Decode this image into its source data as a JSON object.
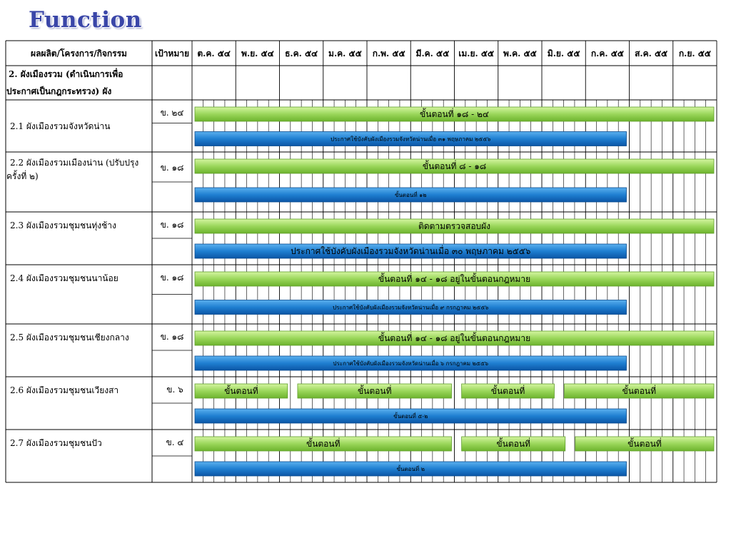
{
  "title": "Function",
  "header": {
    "activity": "ผลผลิต/โครงการ/กิจกรรม",
    "target": "เป้าหมาย",
    "months": [
      "ต.ค. ๕๔",
      "พ.ย. ๕๔",
      "ธ.ค. ๕๔",
      "ม.ค. ๕๕",
      "ก.พ. ๕๕",
      "มี.ค. ๕๕",
      "เม.ย. ๕๕",
      "พ.ค. ๕๕",
      "มิ.ย. ๕๕",
      "ก.ค. ๕๕",
      "ส.ค. ๕๕",
      "ก.ย. ๕๕"
    ]
  },
  "section": {
    "line1": "2. ผังเมืองรวม (ดำเนินการเพื่อ",
    "line2": "ประกาศเป็นกฎกระทรวง) ผัง"
  },
  "rows": [
    {
      "name_lines": [
        "2.1 ผังเมืองรวมจังหวัดน่าน"
      ],
      "target": "ข. ๒๔",
      "bars": [
        {
          "lane": 0,
          "color": "green",
          "start": 0,
          "end": 12,
          "label": "ขั้นตอนที่  ๑๘ - ๒๔"
        },
        {
          "lane": 1,
          "color": "blue",
          "start": 0,
          "end": 10,
          "label": "ประกาศใช้บังคับผังเมืองรวมจังหวัดน่านเมื่อ ๓๑ พฤษภาคม ๒๕๕๖",
          "small": true
        }
      ]
    },
    {
      "name_lines": [
        "2.2 ผังเมืองรวมเมืองน่าน (ปรับปรุง",
        "ครั้งที่ ๒)"
      ],
      "target": "ข. ๑๘",
      "bars": [
        {
          "lane": 0,
          "color": "green",
          "start": 0,
          "end": 12,
          "label": "ขั้นตอนที่  ๘ - ๑๘"
        },
        {
          "lane": 1,
          "color": "blue",
          "start": 0,
          "end": 10,
          "label": "ขั้นตอนที่ ๑๒",
          "small": true
        }
      ]
    },
    {
      "name_lines": [
        "2.3  ผังเมืองรวมชุมชนทุ่งช้าง"
      ],
      "target": "ข. ๑๘",
      "bars": [
        {
          "lane": 0,
          "color": "green",
          "start": 0,
          "end": 12,
          "label": "ติดตามตรวจสอบผัง"
        },
        {
          "lane": 1,
          "color": "blue",
          "start": 0,
          "end": 10,
          "label": "ประกาศใช้บังคับผังเมืองรวมจังหวัดน่านเมื่อ ๓๐ พฤษภาคม ๒๕๕๖"
        }
      ]
    },
    {
      "name_lines": [
        "2.4 ผังเมืองรวมชุมชนนาน้อย"
      ],
      "target": "ข. ๑๘",
      "bars": [
        {
          "lane": 0,
          "color": "green",
          "start": 0,
          "end": 12,
          "label": "ขั้นตอนที่ ๑๔ - ๑๘ อยู่ในขั้นตอนกฎหมาย"
        },
        {
          "lane": 1,
          "color": "blue",
          "start": 0,
          "end": 10,
          "label": "ประกาศใช้บังคับผังเมืองรวมจังหวัดน่านเมื่อ ๙ กรกฎาคม ๒๕๕๖",
          "small": true
        }
      ]
    },
    {
      "name_lines": [
        "2.5 ผังเมืองรวมชุมชนเชียงกลาง"
      ],
      "target": "ข. ๑๘",
      "bars": [
        {
          "lane": 0,
          "color": "green",
          "start": 0,
          "end": 12,
          "label": "ขั้นตอนที่ ๑๔ - ๑๘ อยู่ในขั้นตอนกฎหมาย"
        },
        {
          "lane": 1,
          "color": "blue",
          "start": 0,
          "end": 10,
          "label": "ประกาศใช้บังคับผังเมืองรวมจังหวัดน่านเมื่อ ๖ กรกฎาคม ๒๕๕๖",
          "small": true
        }
      ]
    },
    {
      "name_lines": [
        "2.6 ผังเมืองรวมชุมชนเวียงสา"
      ],
      "target": "ข. ๖",
      "bars": [
        {
          "lane": 0,
          "color": "green",
          "start": 0,
          "end": 2.25,
          "label": "ขั้นตอนที่"
        },
        {
          "lane": 0,
          "color": "green",
          "start": 2.35,
          "end": 6,
          "label": "ขั้นตอนที่"
        },
        {
          "lane": 0,
          "color": "green",
          "start": 6.1,
          "end": 8.35,
          "label": "ขั้นตอนที่"
        },
        {
          "lane": 0,
          "color": "green",
          "start": 8.45,
          "end": 12,
          "label": "ขั้นตอนที่"
        },
        {
          "lane": 1,
          "color": "blue",
          "start": 0,
          "end": 10,
          "label": "ขั้นตอนที่ ๕-๒",
          "small": true
        }
      ]
    },
    {
      "name_lines": [
        "2.7 ผังเมืองรวมชุมชนปัว"
      ],
      "target": "ข. ๔",
      "bars": [
        {
          "lane": 0,
          "color": "green",
          "start": 0,
          "end": 6,
          "label": "ขั้นตอนที่"
        },
        {
          "lane": 0,
          "color": "green",
          "start": 6.1,
          "end": 8.6,
          "label": "ขั้นตอนที่"
        },
        {
          "lane": 0,
          "color": "green",
          "start": 8.7,
          "end": 12,
          "label": "ขั้นตอนที่"
        },
        {
          "lane": 1,
          "color": "blue",
          "start": 0,
          "end": 10,
          "label": "ขั้นตอนที่ ๒",
          "small": true
        }
      ]
    }
  ],
  "colors": {
    "green_top": "#c6ef8c",
    "green_bottom": "#7cc23a",
    "blue_top": "#4da3e6",
    "blue_bottom": "#0f63b8",
    "title": "#3a46a8"
  }
}
